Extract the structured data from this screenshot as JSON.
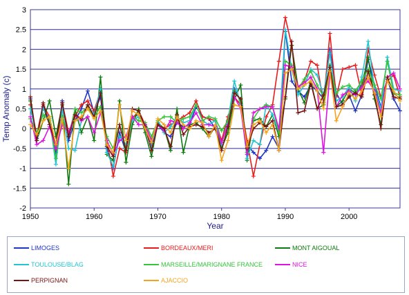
{
  "chart_data": {
    "type": "line",
    "title": "",
    "xlabel": "Year",
    "ylabel": "Temp Anomaly (c)",
    "xlim": [
      1950,
      2008
    ],
    "ylim": [
      -2,
      3
    ],
    "x_ticks": [
      "1950",
      "1960",
      "1970",
      "1980",
      "1990",
      "2000"
    ],
    "y_ticks": [
      "-2",
      "-1.5",
      "-1",
      "-0.5",
      "0",
      "0.5",
      "1",
      "1.5",
      "2",
      "2.5",
      "3"
    ],
    "grid": "horizontal",
    "legend_position": "bottom",
    "x": [
      1950,
      1951,
      1952,
      1953,
      1954,
      1955,
      1956,
      1957,
      1958,
      1959,
      1960,
      1961,
      1962,
      1963,
      1964,
      1965,
      1966,
      1967,
      1968,
      1969,
      1970,
      1971,
      1972,
      1973,
      1974,
      1975,
      1976,
      1977,
      1978,
      1979,
      1980,
      1981,
      1982,
      1983,
      1984,
      1985,
      1986,
      1987,
      1988,
      1989,
      1990,
      1991,
      1992,
      1993,
      1994,
      1995,
      1996,
      1997,
      1998,
      1999,
      2000,
      2001,
      2002,
      2003,
      2004,
      2005,
      2006,
      2007,
      2008
    ],
    "series": [
      {
        "name": "LIMOGES",
        "color": "#1f33c4",
        "values": [
          0.75,
          -0.25,
          0.55,
          0.1,
          -0.6,
          0.7,
          -0.3,
          0.2,
          0.5,
          0.95,
          0.4,
          0.8,
          -0.5,
          -1.0,
          -0.1,
          -0.6,
          0.3,
          0.35,
          0.0,
          -0.4,
          0.1,
          -0.1,
          -0.2,
          0.15,
          0.05,
          0.1,
          0.55,
          0.3,
          0.25,
          0.0,
          -0.4,
          0.2,
          1.0,
          0.7,
          -0.4,
          -0.6,
          -0.75,
          -0.55,
          -0.2,
          -0.5,
          2.45,
          1.2,
          0.95,
          0.8,
          1.1,
          0.95,
          0.75,
          2.0,
          0.9,
          0.6,
          0.85,
          0.45,
          0.85,
          1.75,
          1.1,
          0.55,
          1.25,
          0.75,
          0.45
        ]
      },
      {
        "name": "BORDEAUX/MERI",
        "color": "#e81b1b",
        "values": [
          0.6,
          -0.15,
          0.6,
          0.3,
          -0.5,
          0.65,
          -0.1,
          0.3,
          0.6,
          0.7,
          0.45,
          0.95,
          -0.3,
          -1.2,
          -0.5,
          -0.6,
          0.25,
          0.45,
          0.1,
          -0.3,
          0.15,
          0.0,
          0.1,
          0.2,
          0.3,
          0.4,
          0.7,
          0.3,
          0.25,
          0.2,
          -0.3,
          0.3,
          0.8,
          0.6,
          -0.3,
          -1.2,
          -0.4,
          0.3,
          0.6,
          1.7,
          2.8,
          2.1,
          1.05,
          1.2,
          1.7,
          1.6,
          0.65,
          2.4,
          0.8,
          1.5,
          1.55,
          1.6,
          0.85,
          2.0,
          1.35,
          0.8,
          1.2,
          1.35,
          0.8
        ]
      },
      {
        "name": "MONT AIGOUAL",
        "color": "#0c7a0c",
        "values": [
          0.7,
          -0.3,
          0.2,
          0.7,
          -0.2,
          0.6,
          -1.4,
          0.5,
          -0.1,
          0.3,
          -0.3,
          1.3,
          -0.65,
          -0.8,
          0.7,
          -0.85,
          0.1,
          0.5,
          -0.1,
          -0.7,
          0.15,
          0.0,
          -0.55,
          0.5,
          -0.6,
          0.1,
          0.15,
          0.0,
          -0.2,
          0.05,
          -0.5,
          -0.1,
          0.75,
          1.1,
          -0.8,
          0.2,
          0.25,
          0.05,
          0.35,
          -0.2,
          0.75,
          2.1,
          1.0,
          0.65,
          1.2,
          0.5,
          0.6,
          1.6,
          0.55,
          0.7,
          1.0,
          0.9,
          1.1,
          1.8,
          0.75,
          0.1,
          1.3,
          0.9,
          0.75
        ]
      },
      {
        "name": "TOULOUSE/BLAG",
        "color": "#22c4d2",
        "values": [
          0.5,
          -0.2,
          0.5,
          0.25,
          -0.9,
          0.5,
          -0.5,
          -0.55,
          0.2,
          0.6,
          0.35,
          1.0,
          -0.6,
          -0.95,
          -0.2,
          -0.4,
          0.2,
          0.3,
          0.05,
          -0.5,
          0.2,
          -0.1,
          0.05,
          0.3,
          0.15,
          0.2,
          0.6,
          0.2,
          0.1,
          0.2,
          -0.4,
          0.2,
          1.2,
          0.6,
          -0.75,
          -0.3,
          -0.4,
          0.6,
          0.35,
          -0.1,
          2.5,
          1.5,
          0.85,
          1.1,
          1.5,
          1.35,
          0.85,
          1.9,
          0.7,
          0.8,
          1.05,
          0.7,
          1.3,
          2.2,
          1.0,
          0.5,
          1.8,
          1.0,
          0.95
        ]
      },
      {
        "name": "MARSEILLE/MARIGNANE FRANCE",
        "color": "#35c43a",
        "values": [
          0.25,
          -0.1,
          0.35,
          0.2,
          -0.75,
          0.3,
          -0.2,
          0.5,
          0.4,
          0.55,
          0.3,
          0.55,
          -0.2,
          -0.5,
          0.1,
          -0.5,
          0.3,
          0.2,
          0.15,
          -0.2,
          0.2,
          0.3,
          0.3,
          0.15,
          0.25,
          0.3,
          0.6,
          0.2,
          0.3,
          0.25,
          -0.05,
          0.2,
          0.95,
          0.7,
          -0.6,
          0.25,
          0.5,
          0.6,
          0.55,
          -0.1,
          1.7,
          1.6,
          1.0,
          1.25,
          1.45,
          1.1,
          0.8,
          1.55,
          0.9,
          1.05,
          1.1,
          0.95,
          1.2,
          1.5,
          1.1,
          0.75,
          1.7,
          0.9,
          0.85
        ]
      },
      {
        "name": "NICE",
        "color": "#e012e0",
        "values": [
          0.3,
          -0.4,
          -0.3,
          0.05,
          -0.5,
          0.1,
          -0.1,
          0.35,
          0.2,
          0.3,
          -0.1,
          0.4,
          -0.3,
          -0.65,
          -0.3,
          -0.2,
          0.3,
          0.1,
          0.1,
          -0.3,
          0.1,
          -0.05,
          0.2,
          0.15,
          0.0,
          0.15,
          0.4,
          0.1,
          0.1,
          0.05,
          -0.35,
          0.1,
          0.8,
          0.5,
          -0.65,
          0.4,
          0.5,
          0.55,
          0.55,
          0.0,
          1.6,
          1.55,
          1.05,
          1.15,
          1.3,
          1.0,
          -0.6,
          1.4,
          0.55,
          0.85,
          0.95,
          0.85,
          1.05,
          1.2,
          0.95,
          0.4,
          1.3,
          1.4,
          1.0
        ]
      },
      {
        "name": "PERPIGNAN",
        "color": "#7a1212",
        "values": [
          0.8,
          -0.3,
          0.65,
          0.1,
          -0.4,
          0.65,
          -0.2,
          0.35,
          0.25,
          0.6,
          0.3,
          0.9,
          -0.45,
          -0.7,
          0.1,
          -0.55,
          0.5,
          0.45,
          0.05,
          -0.55,
          0.1,
          0.0,
          -0.45,
          0.35,
          -0.15,
          0.05,
          0.1,
          0.05,
          -0.1,
          0.0,
          -0.55,
          0.05,
          0.9,
          0.75,
          -0.5,
          0.0,
          0.15,
          0.05,
          0.2,
          -0.55,
          0.8,
          2.2,
          0.4,
          0.45,
          1.15,
          0.5,
          0.85,
          1.55,
          0.55,
          0.6,
          0.8,
          0.9,
          0.8,
          1.45,
          0.85,
          0.0,
          1.3,
          0.8,
          0.75
        ]
      },
      {
        "name": "AJACCIO",
        "color": "#f5a31b",
        "values": [
          0.1,
          -0.15,
          0.2,
          0.3,
          -0.4,
          0.25,
          -1.0,
          0.2,
          0.3,
          0.5,
          0.25,
          0.45,
          -0.4,
          -0.6,
          0.6,
          -0.3,
          0.45,
          0.35,
          0.0,
          -0.35,
          0.25,
          0.1,
          -0.1,
          0.3,
          0.1,
          0.0,
          0.2,
          0.15,
          -0.2,
          0.1,
          -0.8,
          -0.3,
          0.6,
          0.55,
          -0.45,
          0.1,
          0.2,
          -0.1,
          0.1,
          -0.55,
          1.4,
          1.5,
          1.0,
          1.1,
          1.2,
          0.95,
          0.5,
          1.45,
          0.2,
          0.55,
          0.9,
          0.75,
          0.95,
          1.3,
          0.9,
          0.3,
          1.2,
          0.95,
          0.7
        ]
      }
    ]
  }
}
